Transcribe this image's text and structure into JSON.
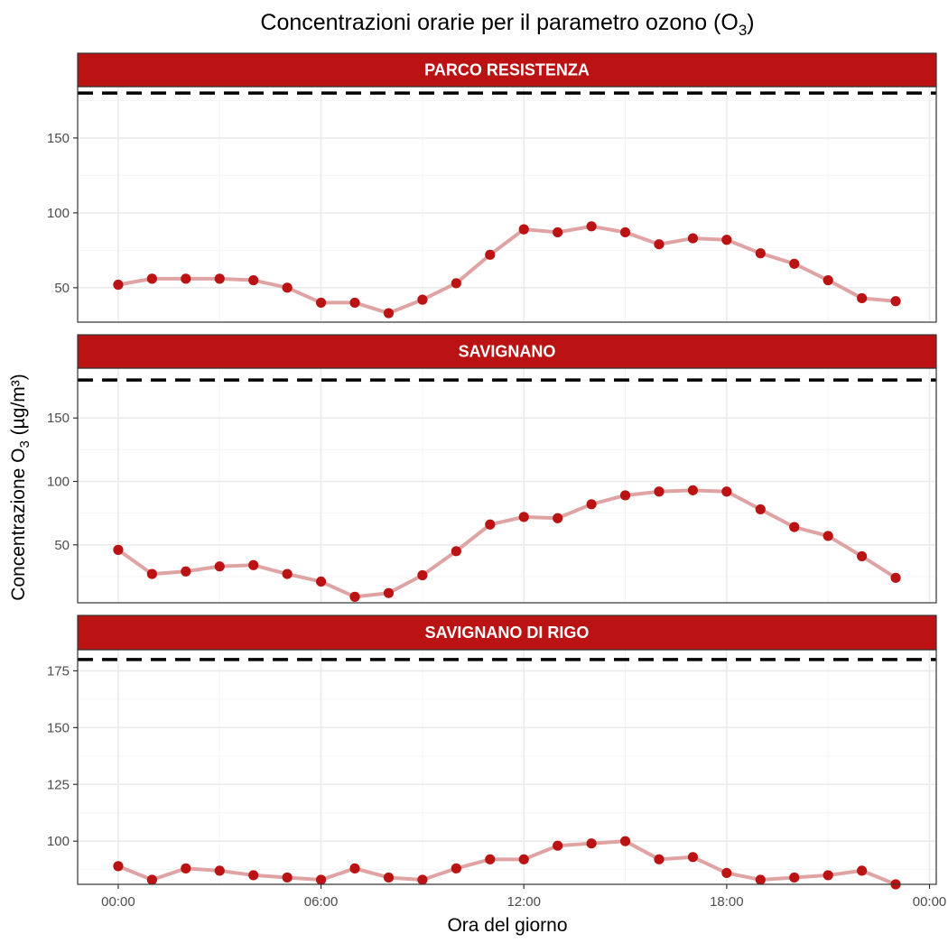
{
  "title_main": "Concentrazioni orarie per il parametro ozono (O",
  "title_sub": "3",
  "title_end": ")",
  "ylabel_main": "Concentrazione O",
  "ylabel_sub": "3",
  "ylabel_end": " (µg/m³)",
  "xlabel": "Ora del giorno",
  "colors": {
    "strip_bg": "#bb1313",
    "strip_text": "#ffffff",
    "line": "#e0a3a3",
    "point": "#bb1313",
    "threshold": "#000000",
    "grid_major": "#ebebeb",
    "grid_minor": "#f5f5f5",
    "panel_border": "#333333"
  },
  "chart_data": {
    "type": "line",
    "x_hours": [
      0,
      1,
      2,
      3,
      4,
      5,
      6,
      7,
      8,
      9,
      10,
      11,
      12,
      13,
      14,
      15,
      16,
      17,
      18,
      19,
      20,
      21,
      22,
      23
    ],
    "x_ticks": [
      0,
      6,
      12,
      18,
      24
    ],
    "x_tick_labels": [
      "00:00",
      "06:00",
      "12:00",
      "18:00",
      "00:00"
    ],
    "xlim": [
      -1.2,
      24.2
    ],
    "threshold": 180,
    "threshold_style": "dashed",
    "panels": [
      {
        "name": "PARCO RESISTENZA",
        "ylim": [
          27,
          184.3
        ],
        "yticks": [
          50,
          100,
          150
        ],
        "values": [
          52,
          56,
          56,
          56,
          55,
          50,
          40,
          40,
          33,
          42,
          53,
          72,
          89,
          87,
          91,
          87,
          79,
          83,
          82,
          73,
          66,
          55,
          43,
          41
        ]
      },
      {
        "name": "SAVIGNANO",
        "ylim": [
          4.3,
          189.3
        ],
        "yticks": [
          50,
          100,
          150
        ],
        "values": [
          46,
          27,
          29,
          33,
          34,
          27,
          21,
          9,
          12,
          26,
          45,
          66,
          72,
          71,
          82,
          89,
          92,
          93,
          92,
          78,
          64,
          57,
          41,
          24
        ]
      },
      {
        "name": "SAVIGNANO DI RIGO",
        "ylim": [
          81,
          184.3
        ],
        "yticks": [
          100,
          125,
          150,
          175
        ],
        "values": [
          89,
          83,
          88,
          87,
          85,
          84,
          83,
          88,
          84,
          83,
          88,
          92,
          92,
          98,
          99,
          100,
          92,
          93,
          86,
          83,
          84,
          85,
          87,
          81
        ]
      }
    ]
  }
}
